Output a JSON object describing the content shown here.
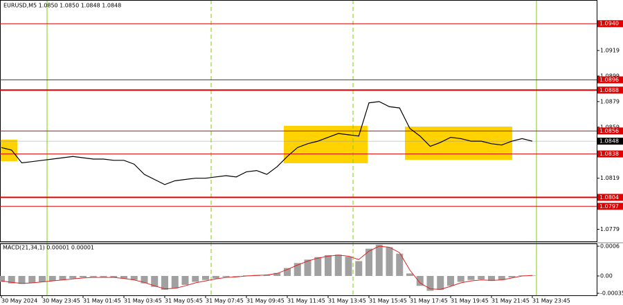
{
  "chart_data": {
    "type": "line",
    "title": "EURUSD,M5  1.0850 1.0850 1.0848 1.0848",
    "categories": [
      "30 May 2024",
      null,
      null,
      null,
      "30 May 23:45",
      null,
      null,
      null,
      "31 May 01:45",
      null,
      null,
      null,
      "31 May 03:45",
      null,
      null,
      null,
      "31 May 05:45",
      null,
      null,
      null,
      "31 May 07:45",
      null,
      null,
      null,
      "31 May 09:45",
      null,
      null,
      null,
      "31 May 11:45",
      null,
      null,
      null,
      "31 May 13:45",
      null,
      null,
      null,
      "31 May 15:45",
      null,
      null,
      null,
      "31 May 17:45",
      null,
      null,
      null,
      "31 May 19:45",
      null,
      null,
      null,
      "31 May 21:45",
      null,
      null,
      null,
      "31 May 23:45",
      null,
      null,
      null
    ],
    "series": [
      {
        "name": "EURUSD,M5",
        "color": "#000000",
        "values": [
          1.0843,
          1.0841,
          1.0831,
          1.0832,
          1.0833,
          1.0834,
          1.0835,
          1.0836,
          1.0835,
          1.0834,
          1.0834,
          1.0833,
          1.0833,
          1.083,
          1.0822,
          1.0818,
          1.0814,
          1.0817,
          1.0818,
          1.0819,
          1.0819,
          1.082,
          1.0821,
          1.082,
          1.0824,
          1.0825,
          1.0822,
          1.0828,
          1.0836,
          1.0843,
          1.0846,
          1.0848,
          1.0851,
          1.0854,
          1.0853,
          1.0852,
          1.0878,
          1.0879,
          1.0875,
          1.0874,
          1.0858,
          1.0852,
          1.0844,
          1.0847,
          1.0851,
          1.085,
          1.0848,
          1.0848,
          1.0846,
          1.0845,
          1.0848,
          1.085,
          1.0848,
          null,
          null,
          null
        ]
      }
    ],
    "ylim": [
      1.0769,
      1.0958
    ],
    "yticks": [
      1.0919,
      1.0899,
      1.0879,
      1.0859,
      1.0819,
      1.0779
    ],
    "levels": [
      {
        "value": 1.094,
        "label": "1.0940",
        "thick": false
      },
      {
        "value": 1.0896,
        "label": "1.0896",
        "thick": false
      },
      {
        "value": 1.0888,
        "label": "1.0888",
        "thick": true
      },
      {
        "value": 1.0856,
        "label": "1.0856",
        "thick": false
      },
      {
        "value": 1.0838,
        "label": "1.0838",
        "thick": false
      },
      {
        "value": 1.0804,
        "label": "1.0804",
        "thick": true
      },
      {
        "value": 1.0797,
        "label": "1.0797",
        "thick": false
      }
    ],
    "current_price": {
      "value": 1.0848,
      "label": "1.0848"
    },
    "macd": {
      "title": "MACD(21,34,1) 0.00001 0.00001",
      "ylim": [
        -0.000405,
        0.000656
      ],
      "yticks": [
        0.0006,
        {
          "value": 0,
          "label": "0.00"
        },
        -0.00035
      ],
      "histogram": {
        "color": "#a0a0a0",
        "values": [
          -0.00012,
          -0.00015,
          -0.00016,
          -0.00014,
          -0.00012,
          -0.0001,
          -8e-05,
          -5e-05,
          -3e-05,
          -2e-05,
          -2e-05,
          -3e-05,
          -5e-05,
          -8e-05,
          -0.00015,
          -0.00022,
          -0.00028,
          -0.00025,
          -0.00018,
          -0.00012,
          -8e-05,
          -5e-05,
          -2e-05,
          -1e-05,
          1e-05,
          2e-05,
          2e-05,
          6e-05,
          0.00016,
          0.00026,
          0.00033,
          0.00038,
          0.00042,
          0.00043,
          0.00039,
          0.0003,
          0.00055,
          0.00063,
          0.00058,
          0.00045,
          5e-05,
          -0.0002,
          -0.0003,
          -0.00028,
          -0.0002,
          -0.00012,
          -8e-05,
          -7e-05,
          -0.0001,
          -8e-05,
          -3e-05,
          1e-05,
          1e-05,
          null,
          null,
          null
        ]
      },
      "signal": {
        "color": "#e02020",
        "values": [
          -0.0001,
          -0.00013,
          -0.00015,
          -0.00014,
          -0.00012,
          -0.0001,
          -8e-05,
          -6e-05,
          -4e-05,
          -3e-05,
          -3e-05,
          -3e-05,
          -5e-05,
          -8e-05,
          -0.00013,
          -0.0002,
          -0.00026,
          -0.00025,
          -0.0002,
          -0.00014,
          -0.0001,
          -6e-05,
          -3e-05,
          -2e-05,
          0,
          1e-05,
          2e-05,
          5e-05,
          0.00013,
          0.00022,
          0.0003,
          0.00036,
          0.0004,
          0.00042,
          0.0004,
          0.00033,
          0.0005,
          0.0006,
          0.00058,
          0.00047,
          0.00012,
          -0.00014,
          -0.00026,
          -0.00027,
          -0.00021,
          -0.00014,
          -0.0001,
          -8e-05,
          -9e-05,
          -8e-05,
          -4e-05,
          0,
          1e-05,
          null,
          null,
          null
        ]
      }
    }
  }
}
